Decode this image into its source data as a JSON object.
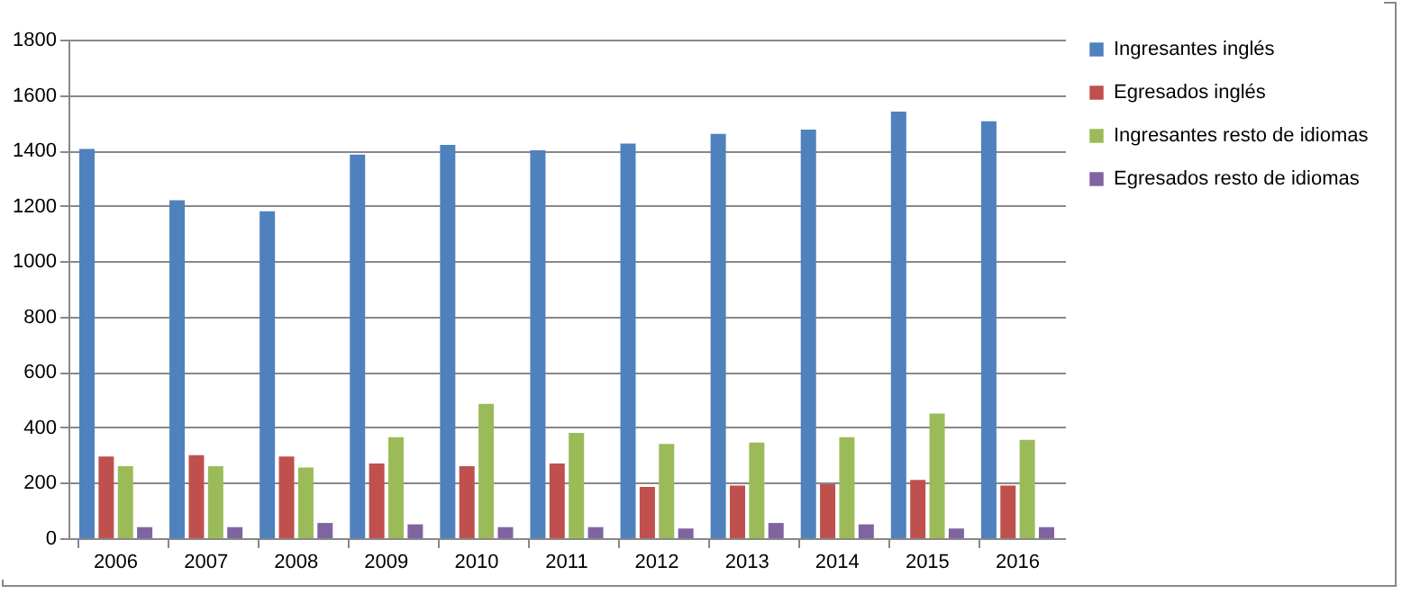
{
  "chart_data": {
    "type": "bar",
    "categories": [
      "2006",
      "2007",
      "2008",
      "2009",
      "2010",
      "2011",
      "2012",
      "2013",
      "2014",
      "2015",
      "2016"
    ],
    "series": [
      {
        "name": "Ingresantes inglés",
        "color": "#4f81bd",
        "values": [
          1405,
          1220,
          1180,
          1385,
          1420,
          1400,
          1425,
          1460,
          1475,
          1540,
          1505
        ]
      },
      {
        "name": "Egresados inglés",
        "color": "#c0504d",
        "values": [
          295,
          300,
          295,
          270,
          260,
          270,
          185,
          190,
          195,
          210,
          190
        ]
      },
      {
        "name": "Ingresantes resto de idiomas",
        "color": "#9bbb59",
        "values": [
          260,
          260,
          255,
          365,
          485,
          380,
          340,
          345,
          365,
          450,
          355
        ]
      },
      {
        "name": "Egresados resto de idiomas",
        "color": "#8064a2",
        "values": [
          40,
          40,
          55,
          50,
          40,
          40,
          35,
          55,
          50,
          35,
          40
        ]
      }
    ],
    "ylim": [
      0,
      1800
    ],
    "yticks": [
      0,
      200,
      400,
      600,
      800,
      1000,
      1200,
      1400,
      1600,
      1800
    ],
    "grid": "y",
    "legend": "right"
  }
}
